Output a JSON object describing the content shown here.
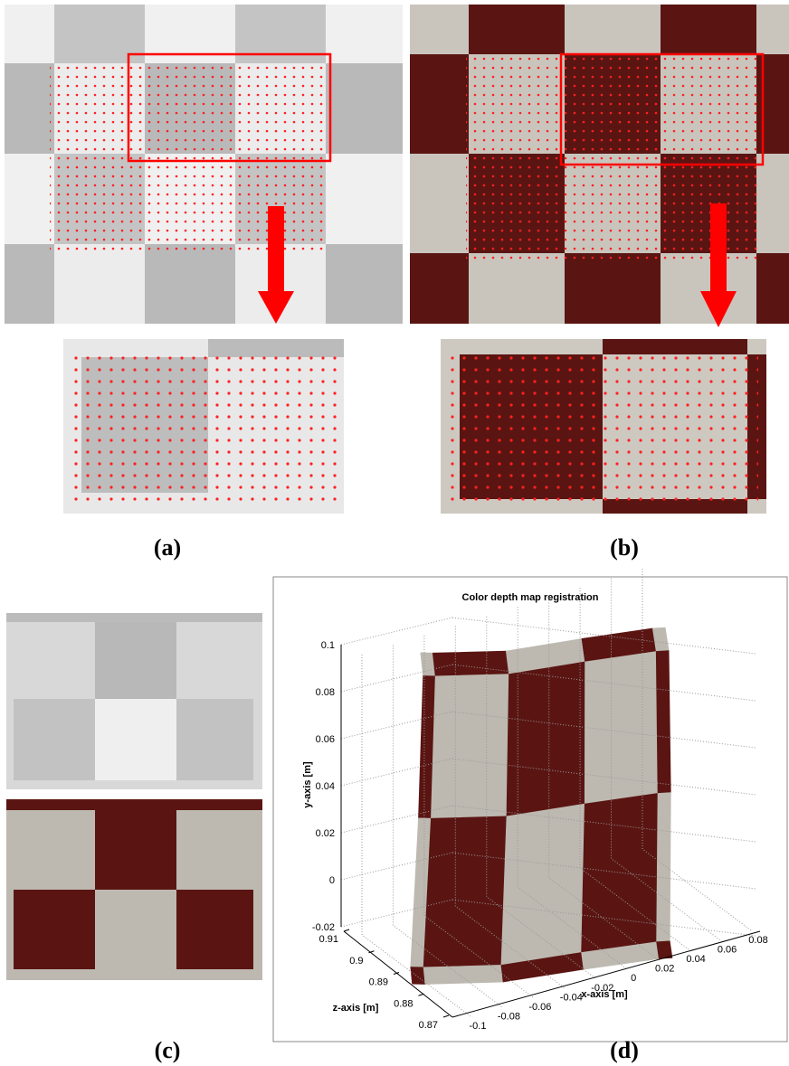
{
  "panels": [
    {
      "label": "(a)"
    },
    {
      "label": "(b)"
    },
    {
      "label": "(c)"
    },
    {
      "label": "(d)"
    }
  ],
  "plot": {
    "title": "Color depth map registration",
    "y_label": "y-axis [m]",
    "z_label": "z-axis [m]",
    "x_label": "x-axis [m]",
    "yticks": [
      0.1,
      0.08,
      0.06,
      0.04,
      0.02,
      0,
      -0.02
    ],
    "zticks": [
      0.91,
      0.9,
      0.89,
      0.88,
      0.87
    ],
    "xticks": [
      -0.1,
      -0.08,
      -0.06,
      -0.04,
      -0.02,
      0,
      0.02,
      0.04,
      0.06,
      0.08
    ]
  }
}
